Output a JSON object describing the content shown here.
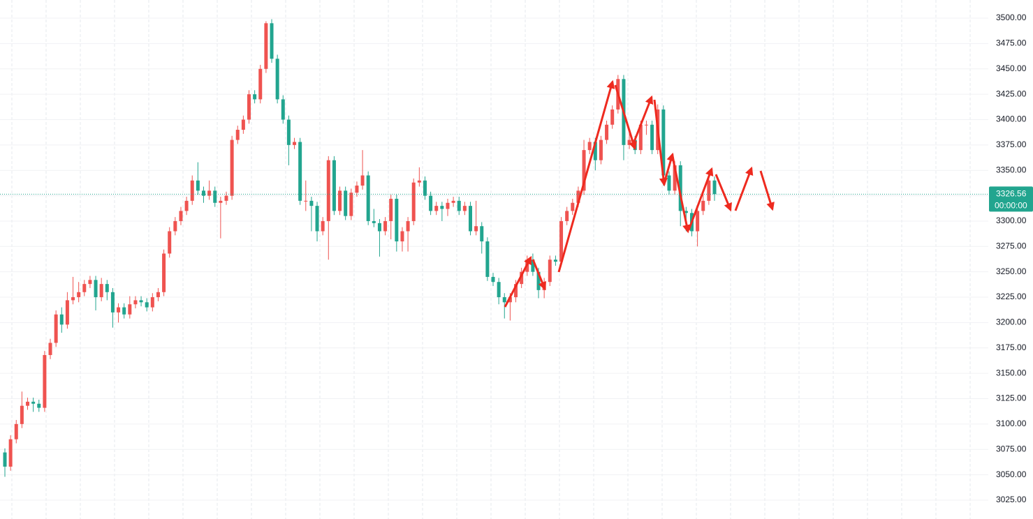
{
  "chart_data": {
    "type": "candlestick",
    "series": {
      "open": [
        3072,
        3058,
        3085,
        3100,
        3118,
        3122,
        3120,
        3116,
        3168,
        3180,
        3208,
        3198,
        3222,
        3225,
        3230,
        3238,
        3242,
        3225,
        3238,
        3230,
        3210,
        3215,
        3208,
        3218,
        3222,
        3220,
        3215,
        3225,
        3230,
        3268,
        3290,
        3300,
        3310,
        3320,
        3340,
        3330,
        3325,
        3330,
        3318,
        3320,
        3325,
        3380,
        3390,
        3400,
        3425,
        3420,
        3450,
        3495,
        3460,
        3420,
        3400,
        3375,
        3378,
        3320,
        3320,
        3315,
        3290,
        3300,
        3360,
        3310,
        3330,
        3305,
        3328,
        3335,
        3345,
        3300,
        3298,
        3290,
        3300,
        3322,
        3280,
        3290,
        3300,
        3338,
        3340,
        3325,
        3310,
        3315,
        3312,
        3318,
        3320,
        3310,
        3315,
        3290,
        3295,
        3280,
        3245,
        3240,
        3225,
        3220,
        3225,
        3238,
        3250,
        3262,
        3250,
        3232,
        3240,
        3262,
        3260,
        3300,
        3310,
        3318,
        3330,
        3370,
        3378,
        3360,
        3380,
        3395,
        3410,
        3440,
        3375,
        3380,
        3370,
        3395,
        3395,
        3370,
        3410,
        3345,
        3330,
        3355,
        3310,
        3308,
        3290,
        3310,
        3320,
        3340
      ],
      "high": [
        3076,
        3089,
        3104,
        3132,
        3126,
        3126,
        3124,
        3172,
        3184,
        3212,
        3215,
        3230,
        3245,
        3240,
        3242,
        3246,
        3246,
        3244,
        3242,
        3234,
        3219,
        3219,
        3226,
        3226,
        3226,
        3224,
        3229,
        3234,
        3272,
        3294,
        3304,
        3314,
        3324,
        3345,
        3358,
        3334,
        3340,
        3334,
        3324,
        3329,
        3384,
        3394,
        3404,
        3429,
        3429,
        3454,
        3497,
        3499,
        3464,
        3424,
        3404,
        3382,
        3382,
        3340,
        3324,
        3319,
        3304,
        3364,
        3364,
        3334,
        3334,
        3332,
        3339,
        3370,
        3349,
        3312,
        3302,
        3304,
        3326,
        3326,
        3294,
        3304,
        3342,
        3353,
        3344,
        3329,
        3319,
        3319,
        3322,
        3324,
        3324,
        3319,
        3319,
        3320,
        3299,
        3284,
        3249,
        3244,
        3229,
        3229,
        3242,
        3254,
        3266,
        3268,
        3254,
        3244,
        3266,
        3266,
        3304,
        3314,
        3322,
        3334,
        3380,
        3382,
        3382,
        3384,
        3399,
        3414,
        3444,
        3444,
        3390,
        3384,
        3399,
        3399,
        3399,
        3415,
        3414,
        3349,
        3359,
        3359,
        3314,
        3312,
        3314,
        3330,
        3344,
        3344
      ],
      "low": [
        3048,
        3054,
        3081,
        3096,
        3114,
        3112,
        3112,
        3112,
        3164,
        3176,
        3190,
        3194,
        3218,
        3220,
        3226,
        3234,
        3212,
        3221,
        3222,
        3195,
        3200,
        3204,
        3204,
        3214,
        3216,
        3211,
        3211,
        3221,
        3226,
        3264,
        3286,
        3296,
        3306,
        3316,
        3326,
        3318,
        3321,
        3314,
        3283,
        3316,
        3321,
        3376,
        3386,
        3396,
        3416,
        3416,
        3446,
        3456,
        3416,
        3396,
        3355,
        3371,
        3316,
        3310,
        3290,
        3280,
        3286,
        3262,
        3306,
        3306,
        3301,
        3301,
        3324,
        3331,
        3296,
        3294,
        3265,
        3286,
        3282,
        3270,
        3270,
        3270,
        3296,
        3334,
        3321,
        3306,
        3306,
        3300,
        3305,
        3314,
        3306,
        3306,
        3286,
        3286,
        3268,
        3241,
        3236,
        3218,
        3204,
        3202,
        3220,
        3234,
        3246,
        3246,
        3224,
        3224,
        3236,
        3256,
        3256,
        3296,
        3306,
        3314,
        3326,
        3366,
        3350,
        3356,
        3376,
        3391,
        3406,
        3360,
        3371,
        3366,
        3366,
        3385,
        3366,
        3366,
        3335,
        3326,
        3326,
        3295,
        3290,
        3285,
        3275,
        3306,
        3316,
        3320
      ],
      "close": [
        3058,
        3085,
        3100,
        3118,
        3122,
        3120,
        3116,
        3168,
        3180,
        3208,
        3198,
        3222,
        3225,
        3230,
        3238,
        3242,
        3225,
        3238,
        3230,
        3210,
        3215,
        3208,
        3218,
        3222,
        3220,
        3215,
        3225,
        3230,
        3268,
        3290,
        3300,
        3310,
        3320,
        3340,
        3330,
        3325,
        3330,
        3318,
        3320,
        3325,
        3380,
        3390,
        3400,
        3425,
        3420,
        3450,
        3495,
        3460,
        3420,
        3400,
        3375,
        3378,
        3320,
        3320,
        3315,
        3290,
        3300,
        3360,
        3310,
        3330,
        3305,
        3328,
        3335,
        3345,
        3300,
        3298,
        3290,
        3300,
        3322,
        3280,
        3290,
        3300,
        3338,
        3340,
        3325,
        3310,
        3315,
        3312,
        3318,
        3320,
        3310,
        3315,
        3290,
        3295,
        3280,
        3245,
        3240,
        3225,
        3220,
        3225,
        3238,
        3250,
        3262,
        3250,
        3232,
        3240,
        3262,
        3260,
        3300,
        3310,
        3318,
        3330,
        3370,
        3378,
        3360,
        3380,
        3395,
        3410,
        3440,
        3375,
        3380,
        3370,
        3395,
        3395,
        3370,
        3410,
        3345,
        3330,
        3355,
        3310,
        3308,
        3290,
        3310,
        3320,
        3340,
        3326.56
      ]
    },
    "up_color": "#ef5350",
    "down_color": "#22a58f",
    "ylim": [
      3006.4,
      3517.9
    ],
    "yticks": [
      {
        "value": 3025,
        "label": "3025.00"
      },
      {
        "value": 3050,
        "label": "3050.00"
      },
      {
        "value": 3075,
        "label": "3075.00"
      },
      {
        "value": 3100,
        "label": "3100.00"
      },
      {
        "value": 3125,
        "label": "3125.00"
      },
      {
        "value": 3150,
        "label": "3150.00"
      },
      {
        "value": 3175,
        "label": "3175.00"
      },
      {
        "value": 3200,
        "label": "3200.00"
      },
      {
        "value": 3225,
        "label": "3225.00"
      },
      {
        "value": 3250,
        "label": "3250.00"
      },
      {
        "value": 3275,
        "label": "3275.00"
      },
      {
        "value": 3300,
        "label": "3300.00"
      },
      {
        "value": 3325,
        "label": "3325.00"
      },
      {
        "value": 3350,
        "label": "3350.00"
      },
      {
        "value": 3375,
        "label": "3375.00"
      },
      {
        "value": 3400,
        "label": "3400.00"
      },
      {
        "value": 3425,
        "label": "3425.00"
      },
      {
        "value": 3450,
        "label": "3450.00"
      },
      {
        "value": 3475,
        "label": "3475.00"
      },
      {
        "value": 3500,
        "label": "3500.00"
      }
    ],
    "grid": true,
    "last_price": 3326.56,
    "last_price_color": "#22a58f",
    "countdown": "00:00:00"
  }
}
